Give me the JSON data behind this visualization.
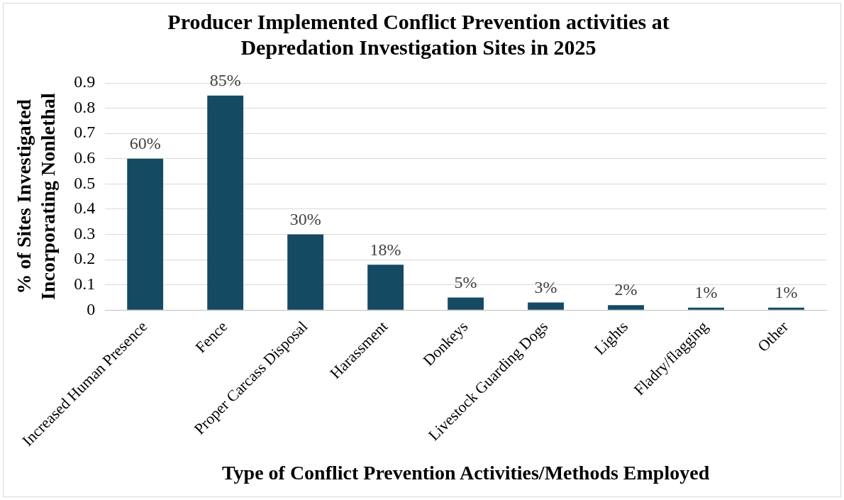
{
  "chart_data": {
    "type": "bar",
    "title": "Producer Implemented Conflict Prevention activities at Depredation Investigation Sites in 2025",
    "xlabel": "Type of Conflict Prevention Activities/Methods Employed",
    "ylabel": "% of Sites Investigated Incorporating Nonlethal",
    "categories": [
      "Increased Human Presence",
      "Fence",
      "Proper Carcass Disposal",
      "Harassment",
      "Donkeys",
      "Livestock Guarding Dogs",
      "Lights",
      "Fladry/flagging",
      "Other"
    ],
    "values": [
      0.6,
      0.85,
      0.3,
      0.18,
      0.05,
      0.03,
      0.02,
      0.01,
      0.01
    ],
    "value_labels": [
      "60%",
      "85%",
      "30%",
      "18%",
      "5%",
      "3%",
      "2%",
      "1%",
      "1%"
    ],
    "color": "#154a63",
    "ylim": [
      0,
      0.9
    ],
    "yticks": [
      0,
      0.1,
      0.2,
      0.3,
      0.4,
      0.5,
      0.6,
      0.7,
      0.8,
      0.9
    ],
    "grid": "y",
    "legend": false
  }
}
